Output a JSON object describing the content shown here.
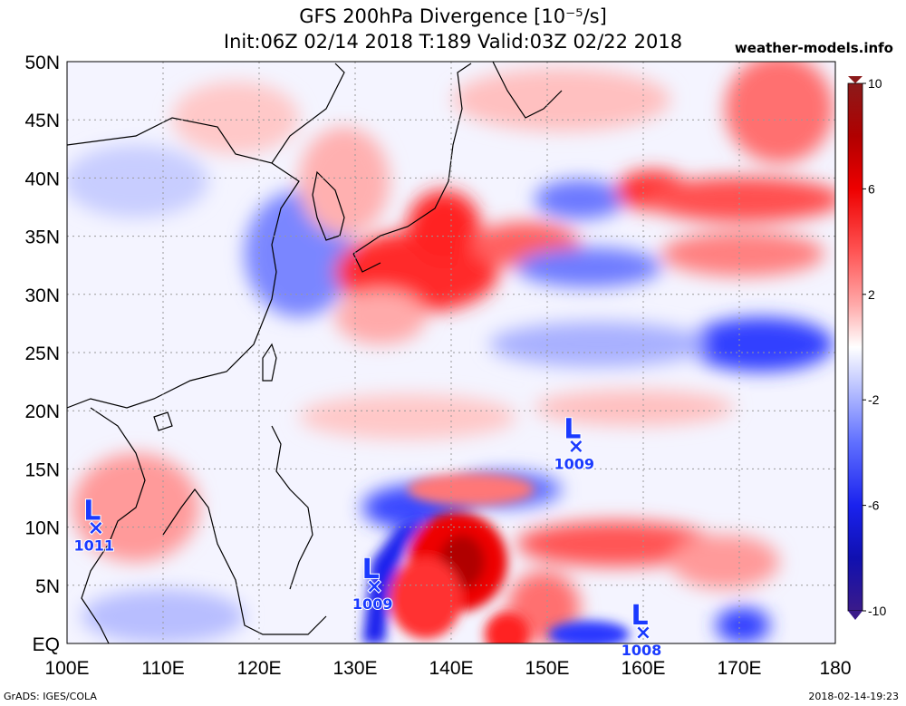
{
  "title": {
    "line1": "GFS 200hPa Divergence [10⁻⁵/s]",
    "line2": "Init:06Z 02/14 2018 T:189 Valid:03Z 02/22 2018"
  },
  "site": "weather-models.info",
  "footer": {
    "left": "GrADS: IGES/COLA",
    "right": "2018-02-14-19:23"
  },
  "axes": {
    "lat_labels": [
      "50N",
      "45N",
      "40N",
      "35N",
      "30N",
      "25N",
      "20N",
      "15N",
      "10N",
      "5N",
      "EQ"
    ],
    "lon_labels": [
      "100E",
      "110E",
      "120E",
      "130E",
      "140E",
      "150E",
      "160E",
      "170E",
      "180"
    ]
  },
  "colorbar": {
    "labels": [
      "10",
      "6",
      "2",
      "-2",
      "-6",
      "-10"
    ],
    "colors": [
      "#8b1a1a",
      "#cc0000",
      "#ff3b3b",
      "#ff9a9a",
      "#ffe8e8",
      "#ffffff",
      "#e6e8ff",
      "#9aa4ff",
      "#3b4cff",
      "#1010d0",
      "#3a1a8a"
    ]
  },
  "lows": [
    {
      "letter": "L",
      "pressure": "1009",
      "lat": 17,
      "lon": 153
    },
    {
      "letter": "L",
      "pressure": "1011",
      "lat": 10,
      "lon": 103
    },
    {
      "letter": "L",
      "pressure": "1009",
      "lat": 5,
      "lon": 132
    },
    {
      "letter": "L",
      "pressure": "1008",
      "lat": 1,
      "lon": 160
    }
  ],
  "colors": {
    "positive": "#ff2020",
    "negative": "#2030ff",
    "low_marker": "#1a3aff"
  }
}
